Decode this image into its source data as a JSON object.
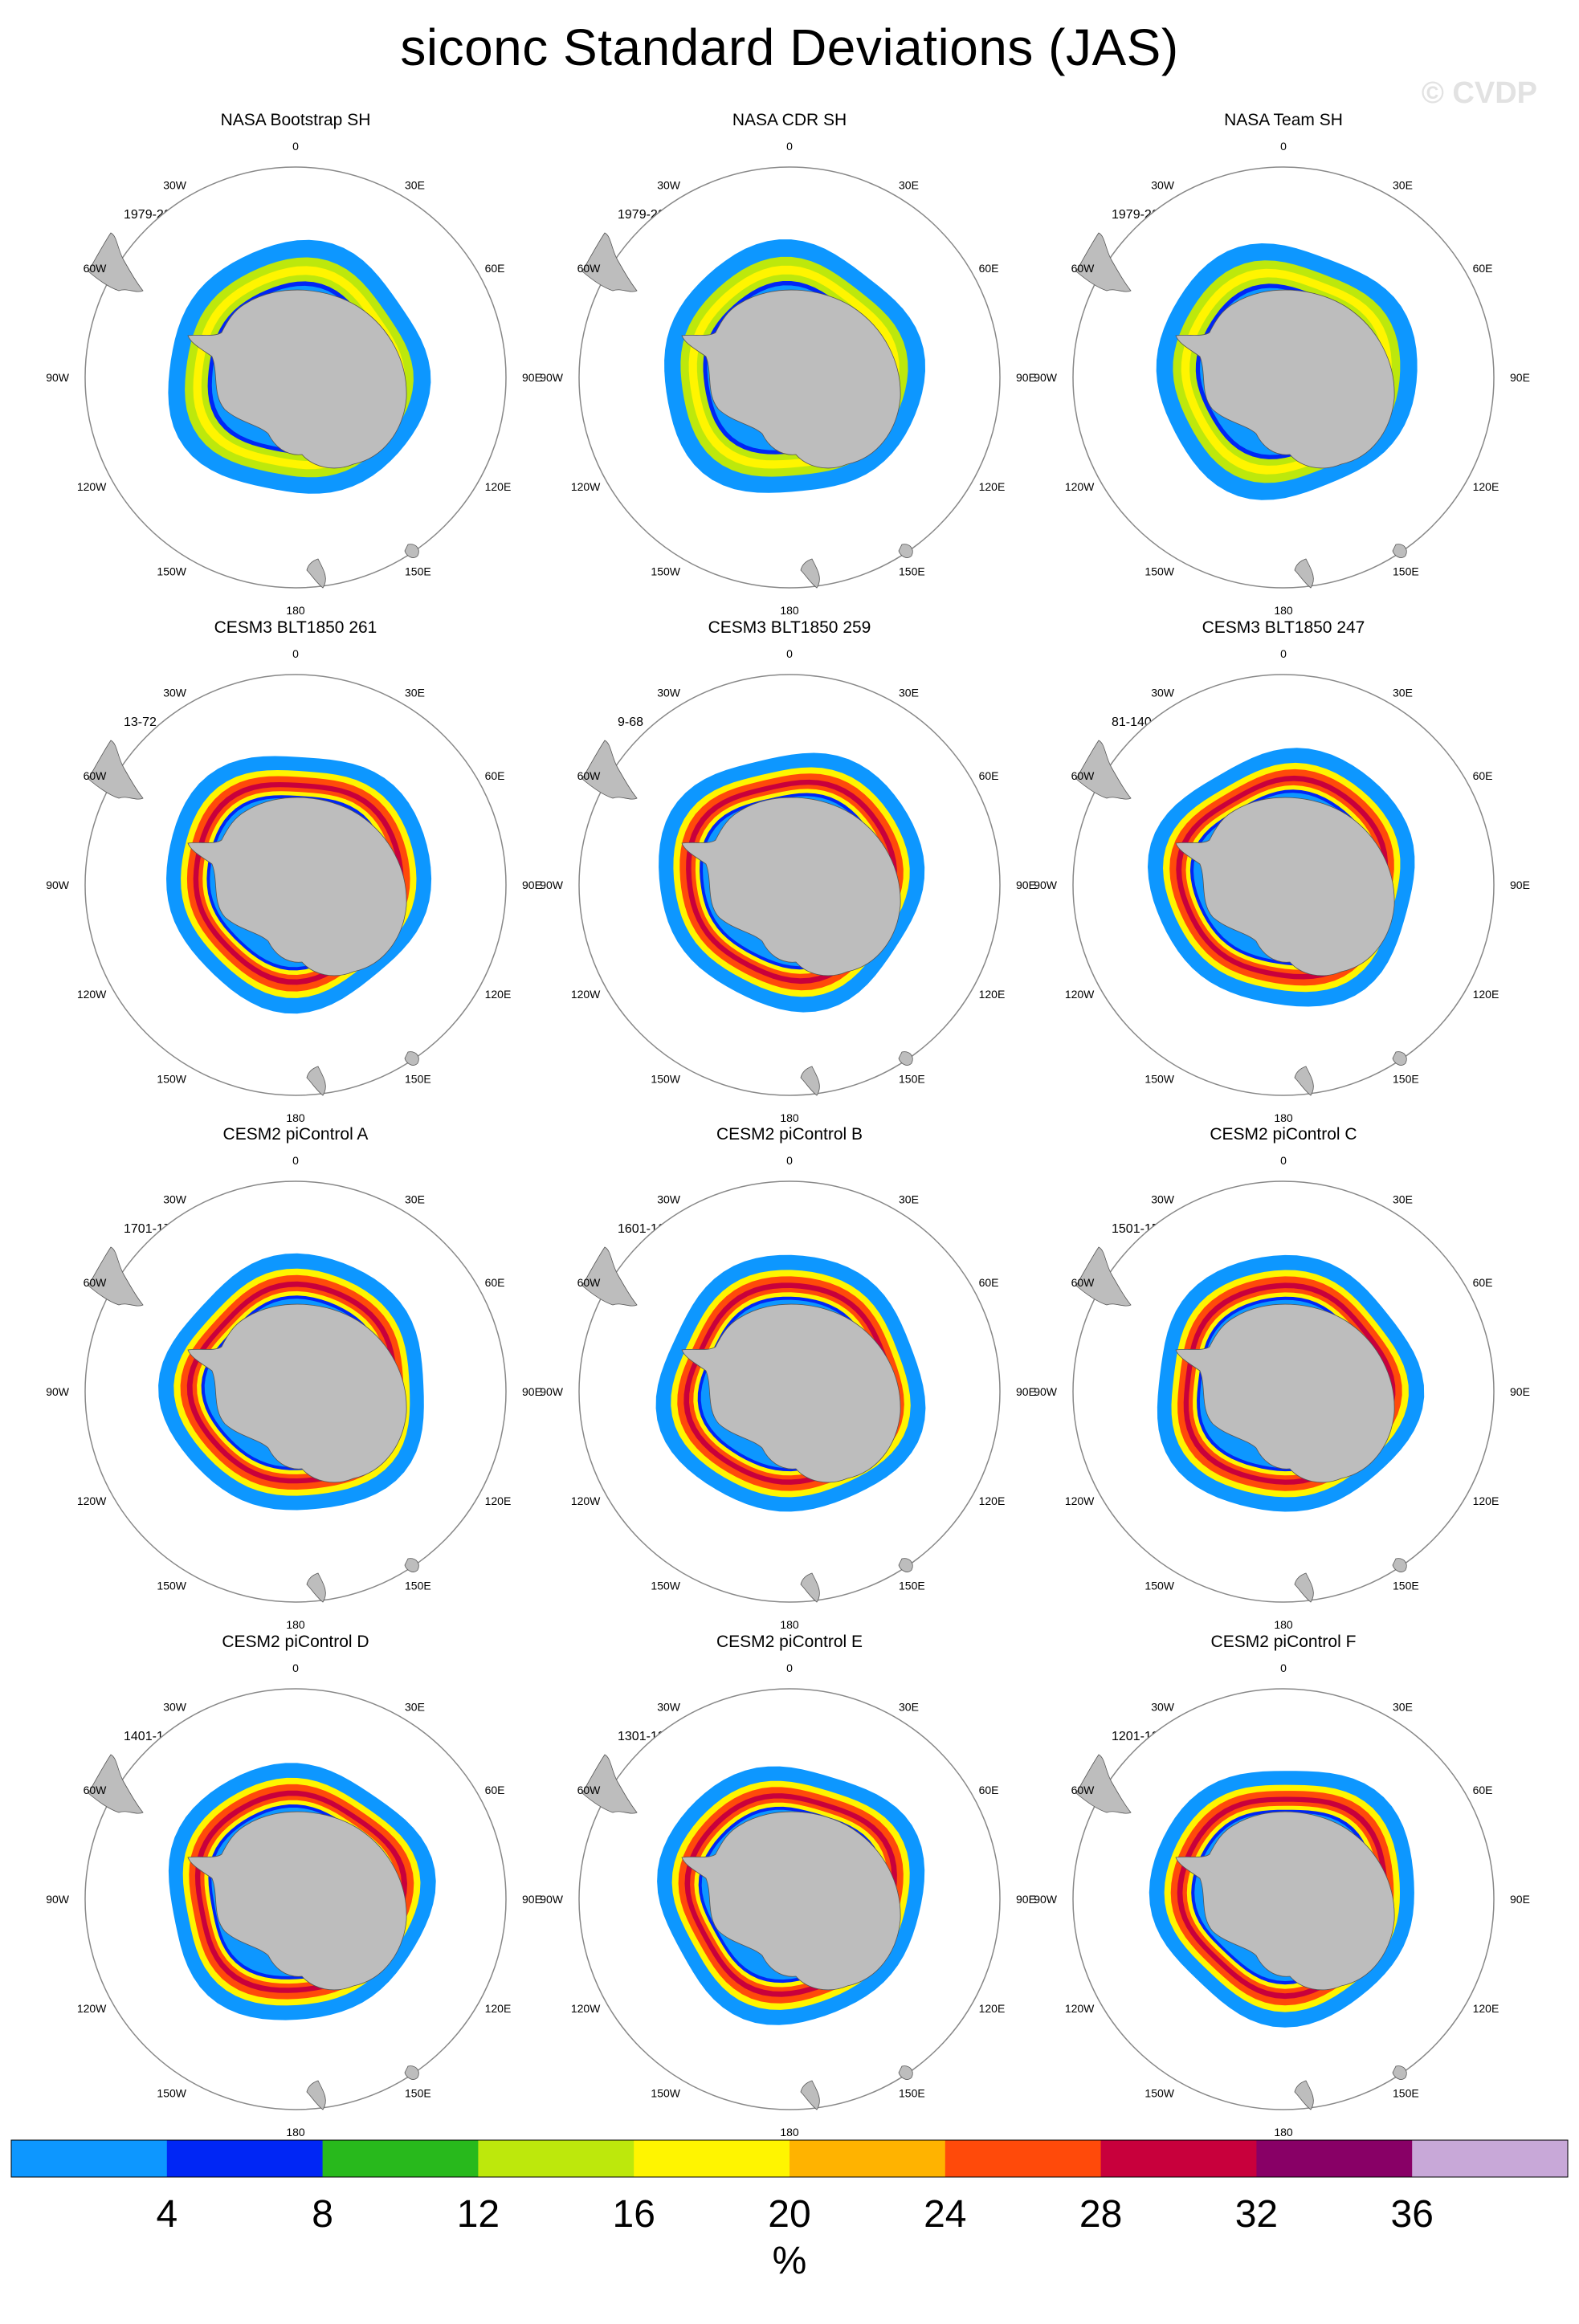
{
  "title": "siconc Standard Deviations (JAS)",
  "watermark": "© CVDP",
  "longitude_labels": [
    "0",
    "30E",
    "60E",
    "90E",
    "120E",
    "150E",
    "180",
    "150W",
    "120W",
    "90W",
    "60W",
    "30W"
  ],
  "panels": [
    {
      "title": "NASA Bootstrap SH",
      "period": "1979-2023",
      "style": "obs"
    },
    {
      "title": "NASA CDR SH",
      "period": "1979-2023",
      "style": "obs"
    },
    {
      "title": "NASA Team SH",
      "period": "1979-2023",
      "style": "obs"
    },
    {
      "title": "CESM3 BLT1850 261",
      "period": "13-72",
      "style": "model"
    },
    {
      "title": "CESM3 BLT1850 259",
      "period": "9-68",
      "style": "model"
    },
    {
      "title": "CESM3 BLT1850 247",
      "period": "81-140",
      "style": "model"
    },
    {
      "title": "CESM2 piControl A",
      "period": "1701-1760",
      "style": "model"
    },
    {
      "title": "CESM2 piControl B",
      "period": "1601-1660",
      "style": "model"
    },
    {
      "title": "CESM2 piControl C",
      "period": "1501-1560",
      "style": "model"
    },
    {
      "title": "CESM2 piControl D",
      "period": "1401-1460",
      "style": "model"
    },
    {
      "title": "CESM2 piControl E",
      "period": "1301-1360",
      "style": "model"
    },
    {
      "title": "CESM2 piControl F",
      "period": "1201-1260",
      "style": "model"
    }
  ],
  "colorbar": {
    "unit": "%",
    "tick_labels": [
      "4",
      "8",
      "12",
      "16",
      "20",
      "24",
      "28",
      "32",
      "36"
    ],
    "colors": [
      "#0d97ff",
      "#0026f5",
      "#28b91c",
      "#bde80c",
      "#fff500",
      "#ffb300",
      "#ff4a0a",
      "#c8003c",
      "#880066",
      "#c8a8d8"
    ]
  },
  "map_colors": {
    "land": "#bdbdbd",
    "ocean": "#ffffff",
    "circle": "#888888"
  }
}
